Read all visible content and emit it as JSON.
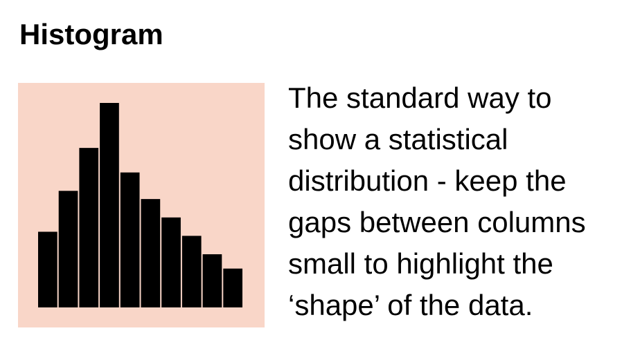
{
  "title": "Histogram",
  "colors": {
    "panel_background": "#f9d6c8",
    "bars": "#000000",
    "text": "#000000"
  },
  "description_lines": [
    "The standard way to",
    "show a statistical",
    "distribution - keep the",
    "gaps between columns",
    "small to highlight the",
    "‘shape’ of the data."
  ],
  "chart_data": {
    "type": "bar",
    "values": [
      37,
      57,
      78,
      100,
      66,
      53,
      44,
      35,
      26,
      19
    ]
  }
}
